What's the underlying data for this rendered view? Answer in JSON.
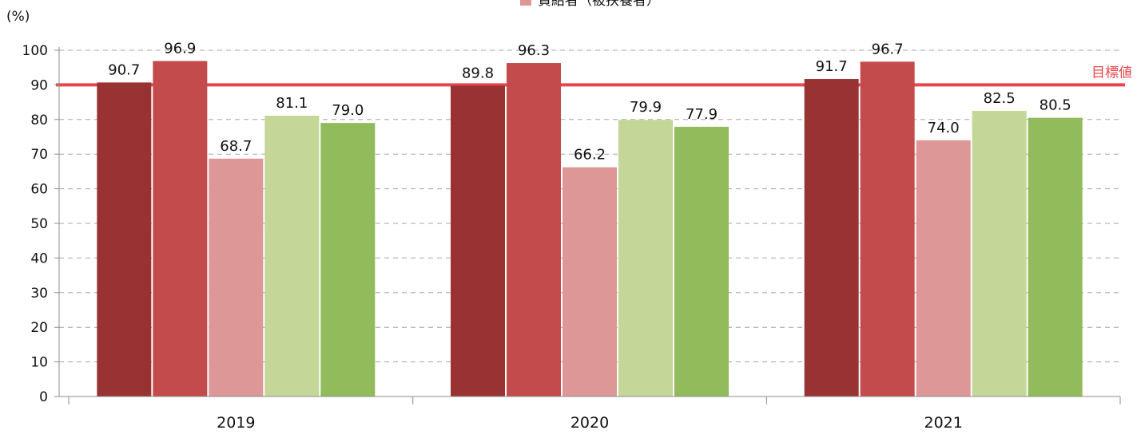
{
  "chart_data": {
    "type": "bar",
    "unit_label": "(%)",
    "categories": [
      "2019",
      "2020",
      "2021"
    ],
    "series": [
      {
        "values": [
          90.7,
          89.8,
          91.7
        ],
        "color": "#993333"
      },
      {
        "values": [
          96.9,
          96.3,
          96.7
        ],
        "color": "#c44b4b"
      },
      {
        "name": "賃給者（被扶養者）",
        "values": [
          68.7,
          66.2,
          74.0
        ],
        "color": "#dd9797"
      },
      {
        "values": [
          81.1,
          79.9,
          82.5
        ],
        "color": "#c4d698"
      },
      {
        "values": [
          79.0,
          77.9,
          80.5
        ],
        "color": "#92bb5b"
      }
    ],
    "value_labels": [
      [
        "90.7",
        "89.8",
        "91.7"
      ],
      [
        "96.9",
        "96.3",
        "96.7"
      ],
      [
        "68.7",
        "66.2",
        "74.0"
      ],
      [
        "81.1",
        "79.9",
        "82.5"
      ],
      [
        "79.0",
        "77.9",
        "80.5"
      ]
    ],
    "yticks": [
      "0",
      "10",
      "20",
      "30",
      "40",
      "50",
      "60",
      "70",
      "80",
      "90",
      "100"
    ],
    "ylim": [
      0,
      100
    ],
    "target": {
      "value": 90,
      "label": "目標値",
      "color": "#e8454c"
    },
    "legend": {
      "placement": "top-center",
      "label": "賃給者（被扶養者）",
      "color": "#dd9797"
    },
    "grid": true
  }
}
